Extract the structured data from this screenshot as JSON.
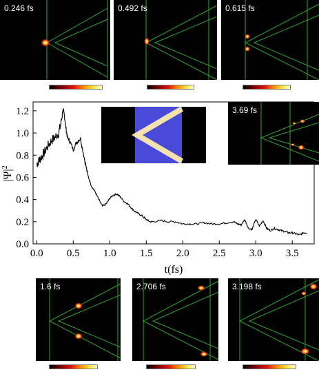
{
  "colors": {
    "background": "#000000",
    "guide_lines": "#2ea82e",
    "colormap": [
      "#000000",
      "#7a0000",
      "#e01010",
      "#ff8a00",
      "#ffe23a",
      "#fffde0"
    ],
    "inset_geometry_background": "#000000",
    "inset_conductor": "#4a4ad8",
    "inset_channel": "#f2e2ae"
  },
  "snapshots": [
    {
      "time": "0.246 fs"
    },
    {
      "time": "0.492 fs"
    },
    {
      "time": "0.615 fs"
    },
    {
      "time": "3.69 fs"
    },
    {
      "time": "1.6 fs"
    },
    {
      "time": "2.706 fs"
    },
    {
      "time": "3.198 fs"
    }
  ],
  "chart_data": {
    "type": "line",
    "title": "",
    "xlabel": "t(fs)",
    "ylabel_parts": {
      "base": "|Ψ|",
      "superscript": "2"
    },
    "xlim": [
      -0.05,
      3.8
    ],
    "ylim": [
      0.0,
      1.28
    ],
    "xticks": [
      0.0,
      0.5,
      1.0,
      1.5,
      2.0,
      2.5,
      3.0,
      3.5
    ],
    "xtick_labels": [
      "0.0",
      "0.5",
      "1.0",
      "1.5",
      "2.0",
      "2.5",
      "3.0",
      "3.5"
    ],
    "yticks": [
      0.0,
      0.2,
      0.4,
      0.6,
      0.8,
      1.0,
      1.2
    ],
    "ytick_labels": [
      "0.0",
      "0.2",
      "0.4",
      "0.6",
      "0.8",
      "1.0",
      "1.2"
    ],
    "grid": false,
    "series": [
      {
        "color": "#000000",
        "x": [
          0.0,
          0.03,
          0.06,
          0.1,
          0.15,
          0.2,
          0.25,
          0.3,
          0.33,
          0.36,
          0.38,
          0.4,
          0.42,
          0.45,
          0.5,
          0.55,
          0.6,
          0.65,
          0.7,
          0.75,
          0.8,
          0.85,
          0.9,
          0.95,
          1.0,
          1.05,
          1.1,
          1.15,
          1.2,
          1.25,
          1.3,
          1.35,
          1.4,
          1.45,
          1.5,
          1.55,
          1.6,
          1.7,
          1.8,
          1.9,
          2.0,
          2.1,
          2.2,
          2.3,
          2.4,
          2.5,
          2.6,
          2.7,
          2.75,
          2.8,
          2.85,
          2.9,
          2.95,
          3.0,
          3.05,
          3.1,
          3.15,
          3.2,
          3.25,
          3.3,
          3.35,
          3.4,
          3.45,
          3.5,
          3.55,
          3.6,
          3.65,
          3.7
        ],
        "y": [
          0.72,
          0.75,
          0.78,
          0.82,
          0.88,
          0.93,
          0.96,
          1.0,
          1.08,
          1.22,
          1.15,
          1.05,
          0.96,
          0.93,
          0.85,
          0.92,
          0.95,
          0.78,
          0.62,
          0.52,
          0.47,
          0.4,
          0.34,
          0.36,
          0.41,
          0.44,
          0.45,
          0.42,
          0.38,
          0.36,
          0.32,
          0.29,
          0.27,
          0.25,
          0.22,
          0.2,
          0.2,
          0.21,
          0.2,
          0.2,
          0.18,
          0.18,
          0.18,
          0.19,
          0.18,
          0.18,
          0.19,
          0.2,
          0.18,
          0.17,
          0.22,
          0.14,
          0.13,
          0.22,
          0.16,
          0.21,
          0.14,
          0.12,
          0.14,
          0.13,
          0.12,
          0.11,
          0.1,
          0.1,
          0.09,
          0.08,
          0.1,
          0.1
        ]
      }
    ]
  }
}
